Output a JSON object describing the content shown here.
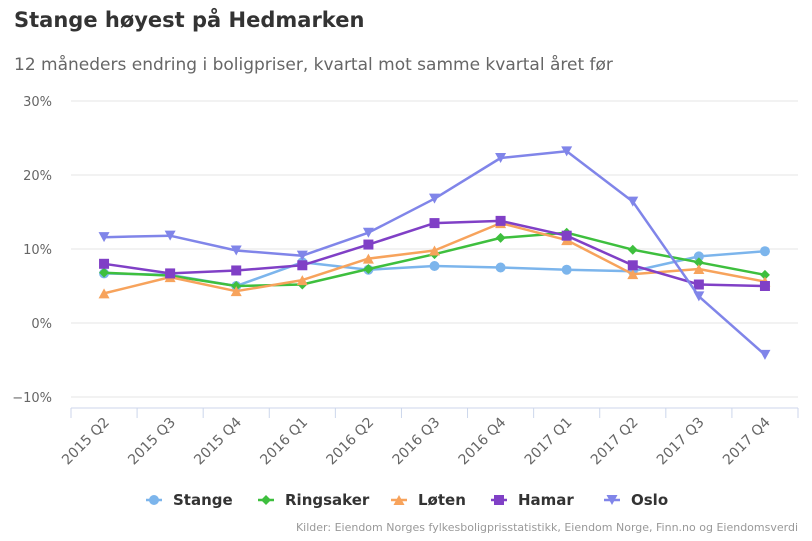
{
  "chart_data": {
    "type": "line",
    "title": "Stange høyest på Hedmarken",
    "subtitle": "12 måneders endring i boligpriser, kvartal mot samme kvartal året før",
    "xlabel": "",
    "ylabel": "",
    "ylim": [
      -10,
      30
    ],
    "y_ticks": [
      "30%",
      "20%",
      "10%",
      "0%",
      "−10%"
    ],
    "y_tick_values": [
      30,
      20,
      10,
      0,
      -10
    ],
    "categories": [
      "2015 Q2",
      "2015 Q3",
      "2015 Q4",
      "2016 Q1",
      "2016 Q2",
      "2016 Q3",
      "2016 Q4",
      "2017 Q1",
      "2017 Q2",
      "2017 Q3",
      "2017 Q4"
    ],
    "grid": true,
    "legend_position": "bottom",
    "series": [
      {
        "name": "Stange",
        "color": "#7cb5ec",
        "marker": "circle",
        "values": [
          6.7,
          6.5,
          5.0,
          8.2,
          7.2,
          7.7,
          7.5,
          7.2,
          7.0,
          9.0,
          9.7
        ]
      },
      {
        "name": "Ringsaker",
        "color": "#3ebf3e",
        "marker": "diamond",
        "values": [
          6.8,
          6.4,
          5.0,
          5.2,
          7.3,
          9.3,
          11.5,
          12.2,
          9.9,
          8.2,
          6.5
        ]
      },
      {
        "name": "Løten",
        "color": "#f7a35c",
        "marker": "triangle",
        "values": [
          4.0,
          6.2,
          4.3,
          5.8,
          8.7,
          9.8,
          13.5,
          11.2,
          6.6,
          7.3,
          5.6
        ]
      },
      {
        "name": "Hamar",
        "color": "#8040c6",
        "marker": "square",
        "values": [
          8.0,
          6.7,
          7.1,
          7.8,
          10.6,
          13.5,
          13.8,
          11.8,
          7.8,
          5.2,
          5.0
        ]
      },
      {
        "name": "Oslo",
        "color": "#8085e9",
        "marker": "triangle-down",
        "values": [
          11.6,
          11.8,
          9.8,
          9.1,
          12.2,
          16.8,
          22.3,
          23.2,
          16.4,
          3.6,
          -4.3
        ]
      }
    ]
  },
  "credits": "Kilder: Eiendom Norges fylkesboligprisstatistikk, Eiendom Norge, Finn.no og Eiendomsverdi"
}
